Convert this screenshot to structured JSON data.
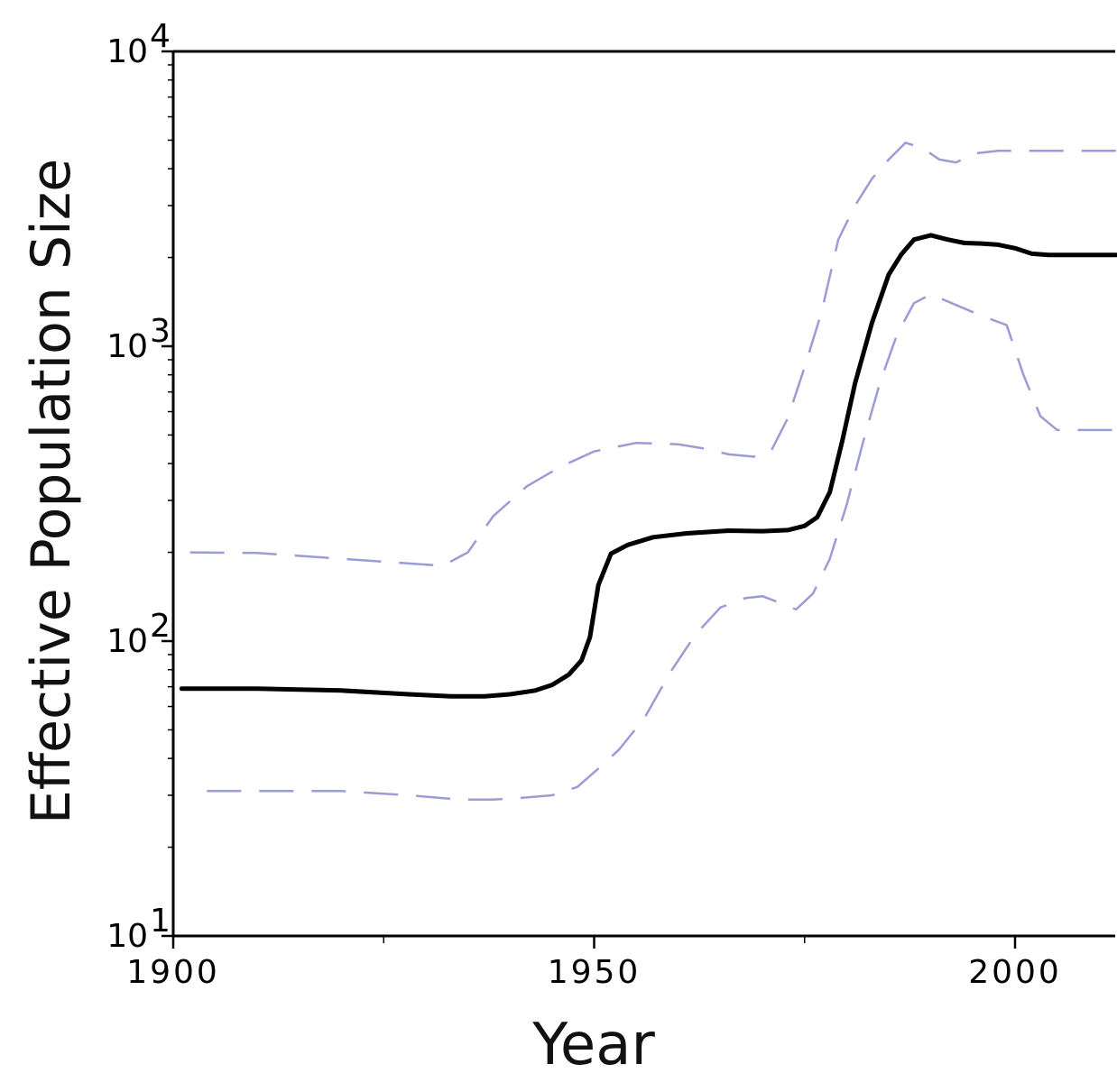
{
  "chart_data": {
    "type": "line",
    "title": "",
    "xlabel": "Year",
    "ylabel": "Effective Population Size",
    "xlim": [
      1900,
      2012
    ],
    "ylim": [
      10,
      10000
    ],
    "yscale": "log",
    "grid": false,
    "legend": "none",
    "x_ticks": [
      {
        "value": 1900,
        "label": "1900"
      },
      {
        "value": 1950,
        "label": "1950"
      },
      {
        "value": 2000,
        "label": "2000"
      }
    ],
    "y_ticks": [
      {
        "value": 10,
        "base": "10",
        "exp": "1"
      },
      {
        "value": 100,
        "base": "10",
        "exp": "2"
      },
      {
        "value": 1000,
        "base": "10",
        "exp": "3"
      },
      {
        "value": 10000,
        "base": "10",
        "exp": "4"
      }
    ],
    "series": [
      {
        "role": "median",
        "color": "#000000",
        "dash": "solid",
        "points": [
          [
            1901,
            69
          ],
          [
            1910,
            69
          ],
          [
            1920,
            68
          ],
          [
            1928,
            66
          ],
          [
            1933,
            65
          ],
          [
            1937,
            65
          ],
          [
            1940,
            66
          ],
          [
            1943,
            68
          ],
          [
            1945,
            71
          ],
          [
            1947,
            77
          ],
          [
            1948.5,
            86
          ],
          [
            1949.5,
            103
          ],
          [
            1950.5,
            155
          ],
          [
            1952,
            198
          ],
          [
            1954,
            212
          ],
          [
            1957,
            225
          ],
          [
            1961,
            232
          ],
          [
            1966,
            237
          ],
          [
            1970,
            236
          ],
          [
            1973,
            238
          ],
          [
            1975,
            246
          ],
          [
            1976.5,
            263
          ],
          [
            1978,
            320
          ],
          [
            1979.5,
            480
          ],
          [
            1981,
            750
          ],
          [
            1983,
            1200
          ],
          [
            1985,
            1750
          ],
          [
            1986.5,
            2050
          ],
          [
            1988,
            2300
          ],
          [
            1990,
            2380
          ],
          [
            1992,
            2300
          ],
          [
            1994,
            2240
          ],
          [
            1996,
            2230
          ],
          [
            1998,
            2210
          ],
          [
            2000,
            2150
          ],
          [
            2002,
            2060
          ],
          [
            2004,
            2040
          ],
          [
            2012,
            2040
          ]
        ]
      },
      {
        "role": "upper-bound",
        "color": "#9b9bd6",
        "dash": "dashed",
        "points": [
          [
            1902,
            200
          ],
          [
            1910,
            199
          ],
          [
            1918,
            192
          ],
          [
            1925,
            186
          ],
          [
            1932,
            180
          ],
          [
            1935,
            200
          ],
          [
            1938,
            265
          ],
          [
            1942,
            335
          ],
          [
            1946,
            390
          ],
          [
            1950,
            440
          ],
          [
            1955,
            470
          ],
          [
            1960,
            465
          ],
          [
            1963,
            450
          ],
          [
            1966,
            430
          ],
          [
            1969,
            422
          ],
          [
            1971,
            440
          ],
          [
            1973,
            570
          ],
          [
            1975,
            850
          ],
          [
            1977,
            1300
          ],
          [
            1979,
            2300
          ],
          [
            1981,
            3000
          ],
          [
            1983,
            3700
          ],
          [
            1985,
            4300
          ],
          [
            1987,
            4900
          ],
          [
            1989,
            4700
          ],
          [
            1991,
            4300
          ],
          [
            1993,
            4200
          ],
          [
            1995,
            4500
          ],
          [
            1998,
            4600
          ],
          [
            2004,
            4600
          ],
          [
            2012,
            4600
          ]
        ]
      },
      {
        "role": "lower-bound",
        "color": "#9b9bd6",
        "dash": "dashed",
        "points": [
          [
            1904,
            31
          ],
          [
            1912,
            31
          ],
          [
            1920,
            31
          ],
          [
            1928,
            30
          ],
          [
            1934,
            29
          ],
          [
            1938,
            29
          ],
          [
            1942,
            29.5
          ],
          [
            1945,
            30
          ],
          [
            1948,
            32
          ],
          [
            1951,
            38
          ],
          [
            1953,
            43
          ],
          [
            1956,
            55
          ],
          [
            1959,
            78
          ],
          [
            1962,
            105
          ],
          [
            1965,
            130
          ],
          [
            1968,
            140
          ],
          [
            1970,
            142
          ],
          [
            1972,
            135
          ],
          [
            1974,
            128
          ],
          [
            1976,
            145
          ],
          [
            1978,
            190
          ],
          [
            1980,
            290
          ],
          [
            1982,
            480
          ],
          [
            1984,
            760
          ],
          [
            1986,
            1100
          ],
          [
            1988,
            1400
          ],
          [
            1990,
            1500
          ],
          [
            1993,
            1380
          ],
          [
            1996,
            1270
          ],
          [
            1999,
            1180
          ],
          [
            2001,
            800
          ],
          [
            2003,
            580
          ],
          [
            2005,
            520
          ],
          [
            2012,
            520
          ]
        ]
      }
    ]
  }
}
